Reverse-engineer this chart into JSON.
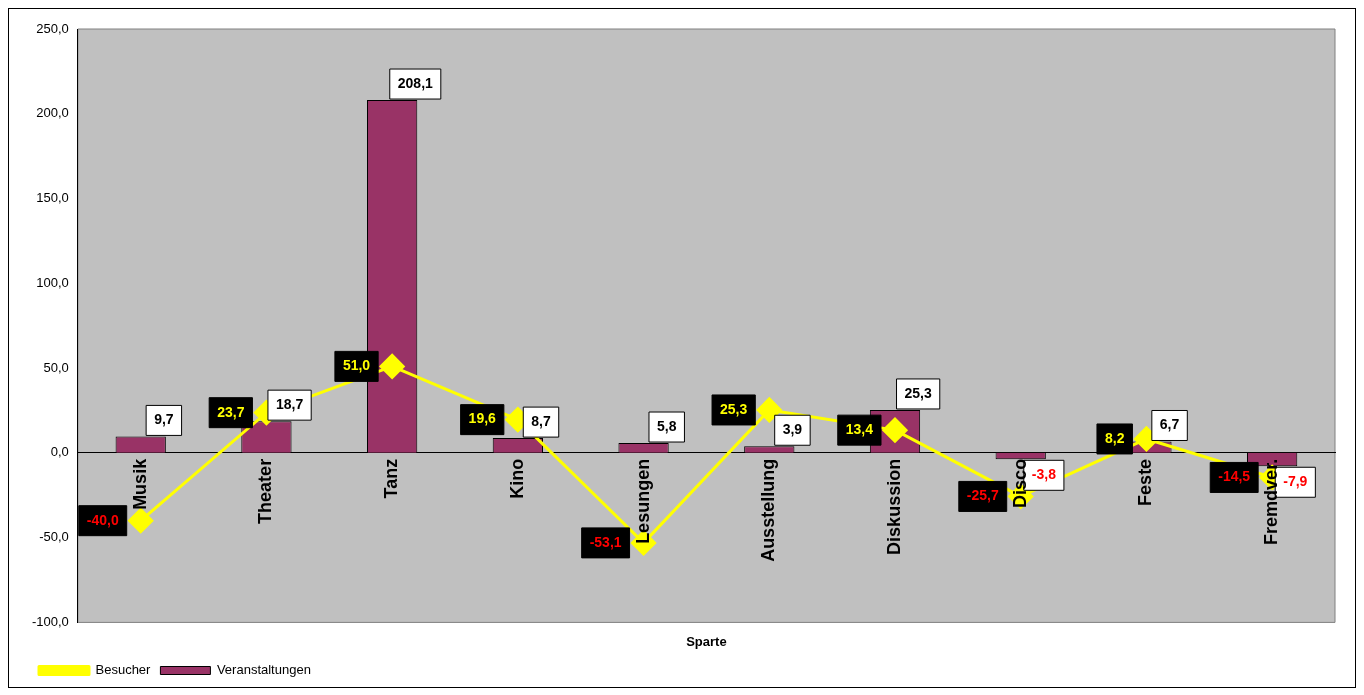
{
  "chart_data": {
    "type": "bar",
    "xlabel": "Sparte",
    "categories": [
      "Musik",
      "Theater",
      "Tanz",
      "Kino",
      "Lesungen",
      "Ausstellung",
      "Diskussion",
      "Disco",
      "Feste",
      "Fremdver."
    ],
    "series": [
      {
        "name": "Veranstaltungen",
        "color": "#993366",
        "values": [
          9.7,
          18.7,
          208.1,
          8.7,
          5.8,
          3.9,
          25.3,
          -3.8,
          6.7,
          -7.9
        ],
        "value_labels": [
          "9,7",
          "18,7",
          "208,1",
          "8,7",
          "5,8",
          "3,9",
          "25,3",
          "-3,8",
          "6,7",
          "-7,9"
        ]
      },
      {
        "name": "Besucher",
        "type": "line",
        "color": "#ffff00",
        "marker": "diamond",
        "values": [
          -40.0,
          23.7,
          51.0,
          19.6,
          -53.1,
          25.3,
          13.4,
          -25.7,
          8.2,
          -14.5
        ],
        "value_labels": [
          "-40,0",
          "23,7",
          "51,0",
          "19,6",
          "-53,1",
          "25,3",
          "13,4",
          "-25,7",
          "8,2",
          "-14,5"
        ]
      }
    ],
    "ylim": [
      -100,
      250
    ],
    "yticks": [
      {
        "value": -100,
        "label": "-100,0"
      },
      {
        "value": -50,
        "label": "-50,0"
      },
      {
        "value": 0,
        "label": "0,0"
      },
      {
        "value": 50,
        "label": "50,0"
      },
      {
        "value": 100,
        "label": "100,0"
      },
      {
        "value": 150,
        "label": "150,0"
      },
      {
        "value": 200,
        "label": "200,0"
      },
      {
        "value": 250,
        "label": "250,0"
      }
    ],
    "grid": false,
    "legend": "bottom left"
  }
}
